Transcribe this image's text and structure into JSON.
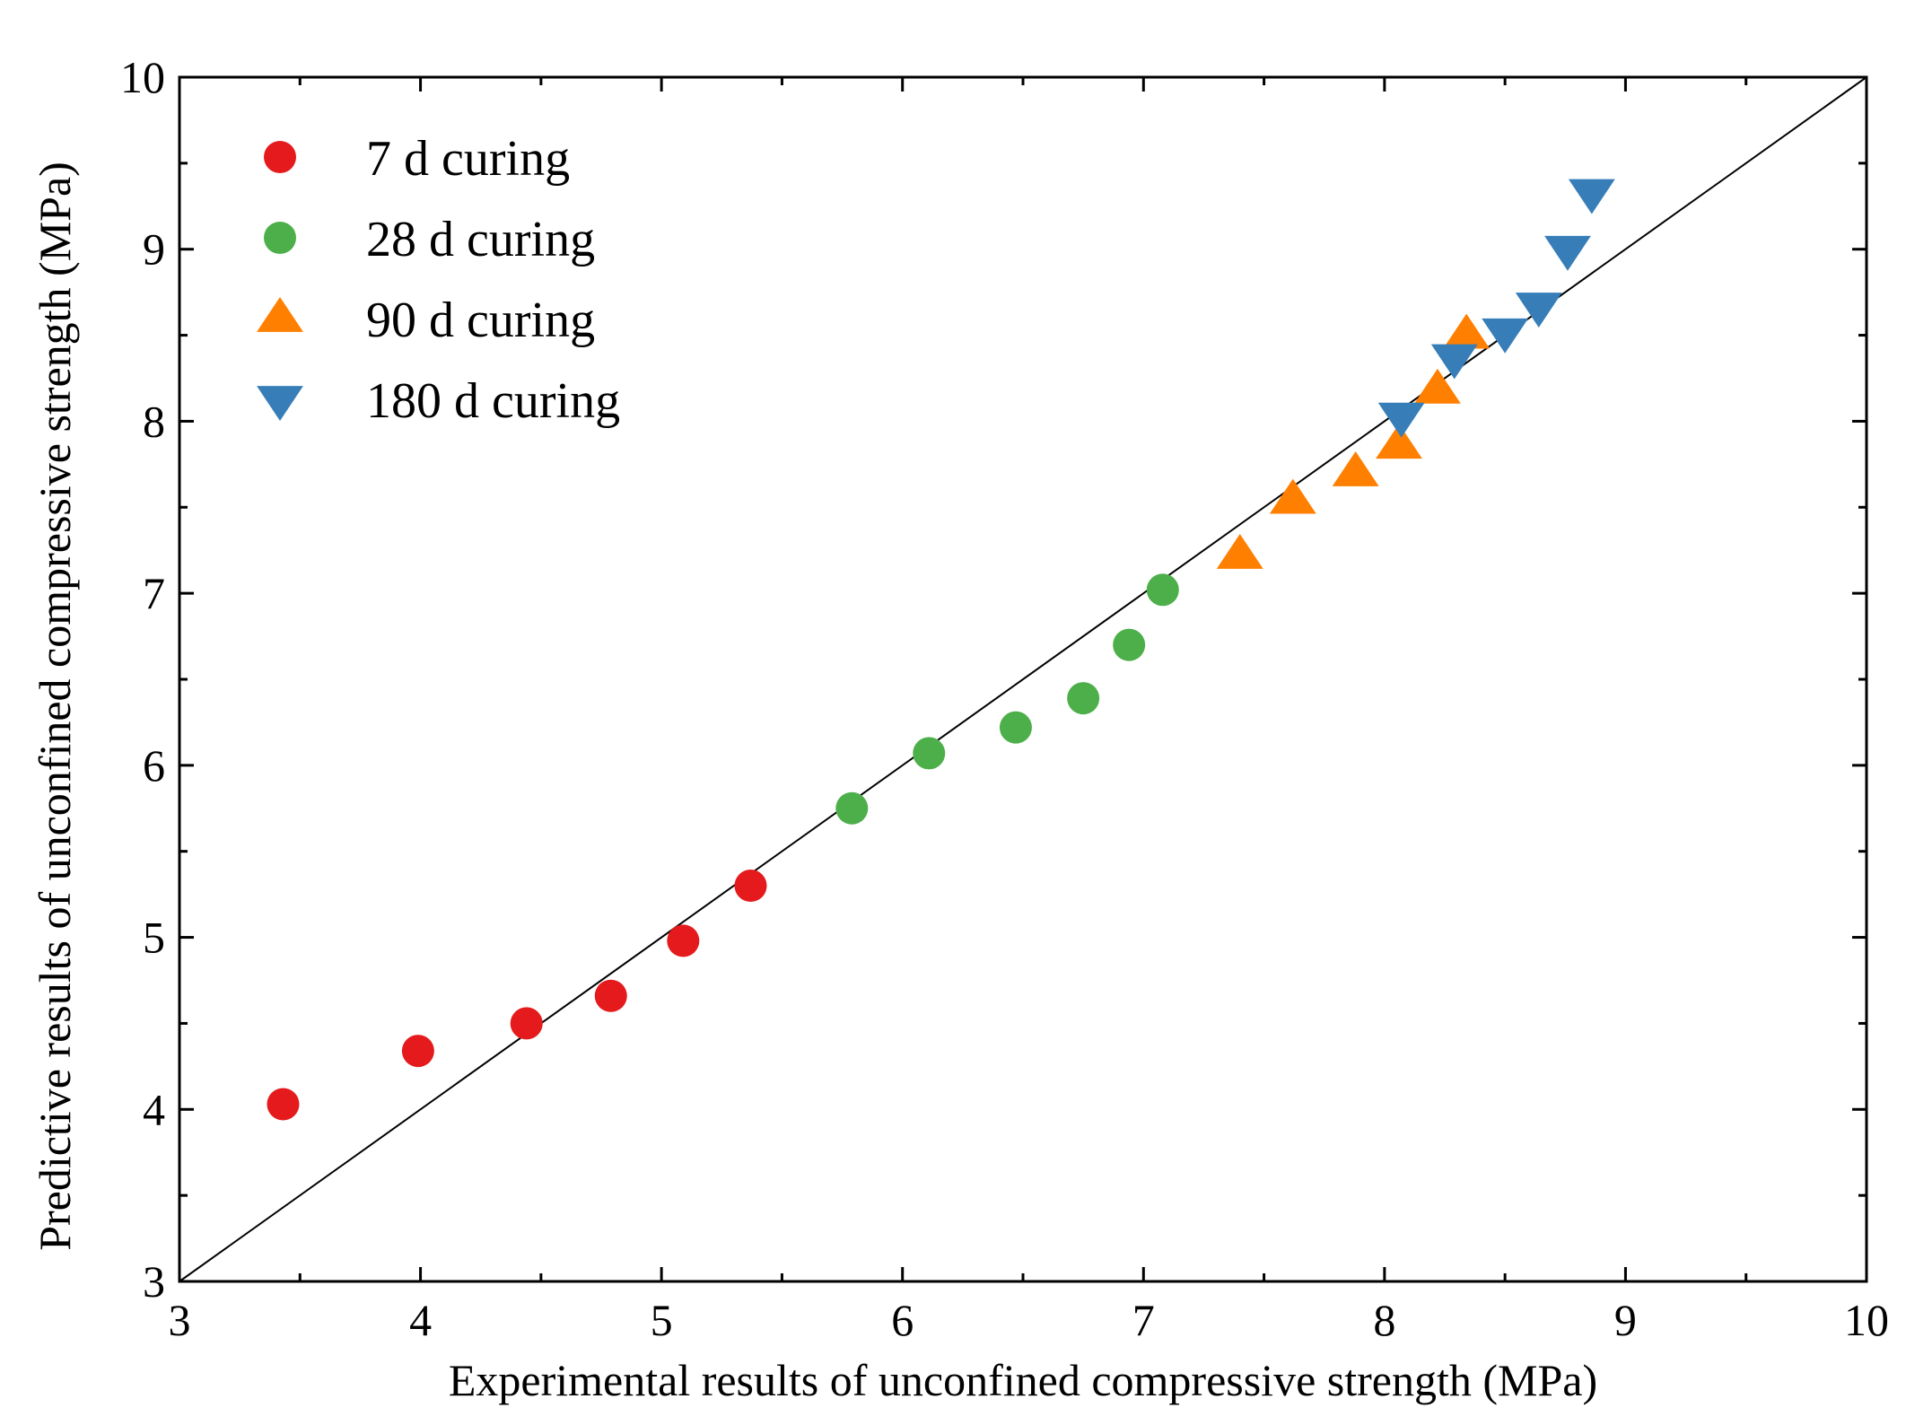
{
  "chart_data": {
    "type": "scatter",
    "title": "",
    "xlabel": "Experimental results of unconfined compressive strength (MPa)",
    "ylabel": "Predictive results of unconfined compressive strength (MPa)",
    "xlim": [
      3,
      10
    ],
    "ylim": [
      3,
      10
    ],
    "xticks": [
      3,
      4,
      5,
      6,
      7,
      8,
      9,
      10
    ],
    "yticks": [
      3,
      4,
      5,
      6,
      7,
      8,
      9,
      10
    ],
    "xtick_labels": [
      "3",
      "4",
      "5",
      "6",
      "7",
      "8",
      "9",
      "10"
    ],
    "ytick_labels": [
      "3",
      "4",
      "5",
      "6",
      "7",
      "8",
      "9",
      "10"
    ],
    "reference_line": {
      "type": "y=x",
      "from": [
        3,
        3
      ],
      "to": [
        10,
        10
      ],
      "color": "#000000"
    },
    "legend_position": "top-left",
    "series": [
      {
        "name": "7 d curing",
        "marker": "circle",
        "color": "#e41a1c",
        "x": [
          3.43,
          3.99,
          4.44,
          4.79,
          5.09,
          5.37
        ],
        "y": [
          4.03,
          4.34,
          4.5,
          4.66,
          4.98,
          5.3
        ]
      },
      {
        "name": "28 d curing",
        "marker": "circle",
        "color": "#4daf4a",
        "x": [
          5.79,
          6.11,
          6.47,
          6.75,
          6.94,
          7.08
        ],
        "y": [
          5.75,
          6.07,
          6.22,
          6.39,
          6.7,
          7.02
        ]
      },
      {
        "name": "90 d curing",
        "marker": "triangle-up",
        "color": "#ff7f00",
        "x": [
          7.4,
          7.62,
          7.88,
          8.06,
          8.22,
          8.34
        ],
        "y": [
          7.22,
          7.54,
          7.7,
          7.86,
          8.18,
          8.5
        ]
      },
      {
        "name": "180 d curing",
        "marker": "triangle-down",
        "color": "#377eb8",
        "x": [
          8.07,
          8.29,
          8.5,
          8.64,
          8.76,
          8.86
        ],
        "y": [
          8.03,
          8.37,
          8.52,
          8.67,
          9.0,
          9.33
        ]
      }
    ]
  }
}
